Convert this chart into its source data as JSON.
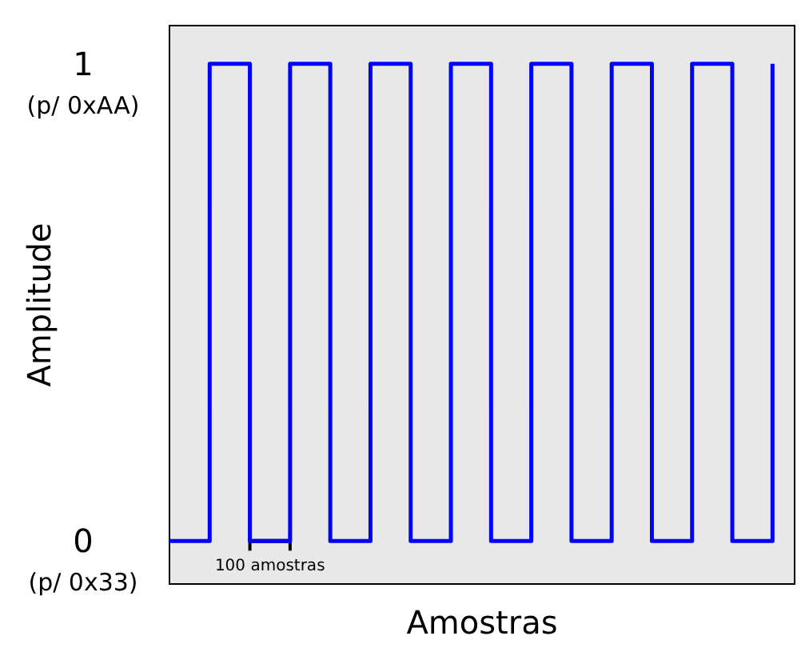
{
  "chart_data": {
    "type": "step",
    "xlabel": "Amostras",
    "ylabel": "Amplitude",
    "categories": [
      null,
      null,
      null,
      null,
      null,
      null,
      null,
      null,
      null,
      null,
      null,
      null,
      null,
      null,
      null,
      null
    ],
    "series": [
      {
        "color": "#0000ff",
        "values": [
          0,
          1,
          0,
          1,
          0,
          1,
          0,
          1,
          0,
          1,
          0,
          1,
          0,
          1,
          0,
          1
        ]
      }
    ],
    "ylim": [
      -0.09,
      1.08
    ],
    "yticks": [
      0,
      1
    ],
    "tick_labels": "y",
    "grid": false,
    "marker": "none",
    "line_style": "solid",
    "annotations": [
      "100 amostras",
      "(p/ 0xAA)",
      "(p/ 0x33)"
    ]
  }
}
